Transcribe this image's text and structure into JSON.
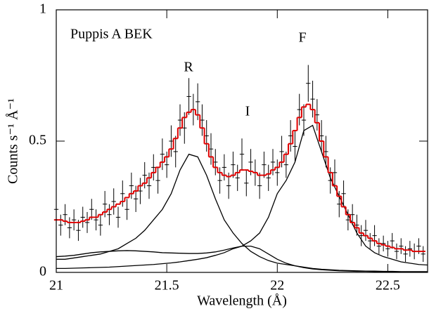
{
  "chart_data": {
    "type": "line",
    "xlabel": "Wavelength (Å)",
    "ylabel": "Counts s⁻¹ Å⁻¹",
    "annotations": [
      "Puppis A BEK",
      "R",
      "I",
      "F"
    ],
    "xlim": [
      21,
      22.68
    ],
    "ylim": [
      0,
      1
    ],
    "xticks": [
      21,
      21.5,
      22,
      22.5
    ],
    "yticks": [
      0,
      0.5,
      1
    ],
    "x": [
      21.0,
      21.02,
      21.04,
      21.06,
      21.08,
      21.1,
      21.12,
      21.14,
      21.16,
      21.18,
      21.2,
      21.22,
      21.24,
      21.26,
      21.28,
      21.3,
      21.32,
      21.34,
      21.36,
      21.38,
      21.4,
      21.42,
      21.44,
      21.46,
      21.48,
      21.5,
      21.52,
      21.54,
      21.56,
      21.58,
      21.6,
      21.62,
      21.64,
      21.66,
      21.68,
      21.7,
      21.72,
      21.74,
      21.76,
      21.78,
      21.8,
      21.82,
      21.84,
      21.86,
      21.88,
      21.9,
      21.92,
      21.94,
      21.96,
      21.98,
      22.0,
      22.02,
      22.04,
      22.06,
      22.08,
      22.1,
      22.12,
      22.14,
      22.16,
      22.18,
      22.2,
      22.22,
      22.24,
      22.26,
      22.28,
      22.3,
      22.32,
      22.34,
      22.36,
      22.38,
      22.4,
      22.42,
      22.44,
      22.46,
      22.48,
      22.5,
      22.52,
      22.54,
      22.56,
      22.58,
      22.6,
      22.62,
      22.64,
      22.66
    ],
    "bin_width": 0.02,
    "series": [
      {
        "style": "errorbar",
        "color": "#000000",
        "values": [
          0.24,
          0.18,
          0.22,
          0.17,
          0.2,
          0.16,
          0.21,
          0.19,
          0.24,
          0.2,
          0.18,
          0.26,
          0.22,
          0.27,
          0.21,
          0.3,
          0.24,
          0.33,
          0.28,
          0.31,
          0.37,
          0.33,
          0.4,
          0.35,
          0.45,
          0.41,
          0.5,
          0.46,
          0.58,
          0.55,
          0.67,
          0.62,
          0.65,
          0.58,
          0.52,
          0.47,
          0.42,
          0.35,
          0.4,
          0.33,
          0.41,
          0.36,
          0.45,
          0.34,
          0.42,
          0.38,
          0.33,
          0.41,
          0.36,
          0.42,
          0.38,
          0.46,
          0.41,
          0.52,
          0.48,
          0.62,
          0.58,
          0.72,
          0.66,
          0.6,
          0.52,
          0.46,
          0.35,
          0.38,
          0.26,
          0.3,
          0.2,
          0.22,
          0.18,
          0.14,
          0.16,
          0.12,
          0.14,
          0.1,
          0.11,
          0.09,
          0.12,
          0.08,
          0.1,
          0.07,
          0.09,
          0.08,
          0.1,
          0.07
        ],
        "errors": [
          0.04,
          0.04,
          0.04,
          0.04,
          0.04,
          0.04,
          0.04,
          0.04,
          0.04,
          0.04,
          0.04,
          0.05,
          0.04,
          0.05,
          0.04,
          0.05,
          0.04,
          0.05,
          0.05,
          0.05,
          0.05,
          0.05,
          0.05,
          0.05,
          0.06,
          0.05,
          0.06,
          0.06,
          0.06,
          0.06,
          0.07,
          0.06,
          0.07,
          0.06,
          0.06,
          0.06,
          0.05,
          0.05,
          0.05,
          0.05,
          0.05,
          0.05,
          0.06,
          0.05,
          0.05,
          0.05,
          0.05,
          0.05,
          0.05,
          0.05,
          0.05,
          0.06,
          0.05,
          0.06,
          0.06,
          0.06,
          0.06,
          0.07,
          0.07,
          0.06,
          0.06,
          0.06,
          0.05,
          0.05,
          0.05,
          0.05,
          0.04,
          0.04,
          0.04,
          0.04,
          0.04,
          0.03,
          0.04,
          0.03,
          0.03,
          0.03,
          0.03,
          0.03,
          0.03,
          0.03,
          0.03,
          0.03,
          0.03,
          0.03
        ]
      },
      {
        "style": "step",
        "color": "#e00000",
        "values": [
          0.2,
          0.2,
          0.195,
          0.19,
          0.19,
          0.19,
          0.195,
          0.2,
          0.21,
          0.21,
          0.22,
          0.23,
          0.24,
          0.25,
          0.26,
          0.27,
          0.285,
          0.3,
          0.31,
          0.33,
          0.34,
          0.36,
          0.38,
          0.4,
          0.42,
          0.44,
          0.47,
          0.51,
          0.55,
          0.59,
          0.61,
          0.62,
          0.6,
          0.55,
          0.49,
          0.44,
          0.4,
          0.38,
          0.37,
          0.365,
          0.37,
          0.38,
          0.39,
          0.39,
          0.385,
          0.38,
          0.37,
          0.37,
          0.375,
          0.39,
          0.4,
          0.42,
          0.45,
          0.49,
          0.54,
          0.59,
          0.63,
          0.64,
          0.62,
          0.57,
          0.5,
          0.44,
          0.38,
          0.33,
          0.29,
          0.25,
          0.22,
          0.19,
          0.17,
          0.15,
          0.14,
          0.13,
          0.12,
          0.11,
          0.105,
          0.1,
          0.095,
          0.09,
          0.09,
          0.085,
          0.085,
          0.08,
          0.08,
          0.08
        ]
      },
      {
        "style": "line",
        "color": "#000000",
        "x": [
          21.0,
          21.04,
          21.08,
          21.12,
          21.16,
          21.2,
          21.24,
          21.28,
          21.32,
          21.36,
          21.4,
          21.44,
          21.48,
          21.52,
          21.56,
          21.6,
          21.64,
          21.68,
          21.72,
          21.76,
          21.8,
          21.84,
          21.88,
          21.92,
          21.96,
          22.0,
          22.04,
          22.08,
          22.12,
          22.16,
          22.2,
          22.24,
          22.28,
          22.32,
          22.36,
          22.4,
          22.44,
          22.48,
          22.52,
          22.56,
          22.6,
          22.64,
          22.68
        ],
        "values": [
          0.05,
          0.05,
          0.055,
          0.06,
          0.065,
          0.07,
          0.08,
          0.09,
          0.11,
          0.13,
          0.16,
          0.2,
          0.24,
          0.3,
          0.39,
          0.45,
          0.44,
          0.37,
          0.28,
          0.2,
          0.15,
          0.11,
          0.08,
          0.06,
          0.045,
          0.035,
          0.03,
          0.025,
          0.02,
          0.015,
          0.012,
          0.01,
          0.008,
          0.007,
          0.006,
          0.005,
          0.005,
          0.004,
          0.004,
          0.003,
          0.003,
          0.003,
          0.003
        ]
      },
      {
        "style": "line",
        "color": "#000000",
        "x": [
          21.0,
          21.04,
          21.08,
          21.12,
          21.16,
          21.2,
          21.24,
          21.28,
          21.32,
          21.36,
          21.4,
          21.44,
          21.48,
          21.52,
          21.56,
          21.6,
          21.64,
          21.68,
          21.72,
          21.76,
          21.8,
          21.84,
          21.88,
          21.92,
          21.96,
          22.0,
          22.04,
          22.08,
          22.12,
          22.16,
          22.2,
          22.24,
          22.28,
          22.32,
          22.36,
          22.4,
          22.44,
          22.48,
          22.52,
          22.56,
          22.6,
          22.64,
          22.68
        ],
        "values": [
          0.06,
          0.062,
          0.065,
          0.07,
          0.075,
          0.078,
          0.08,
          0.082,
          0.083,
          0.082,
          0.08,
          0.078,
          0.075,
          0.074,
          0.073,
          0.072,
          0.072,
          0.074,
          0.078,
          0.085,
          0.093,
          0.1,
          0.1,
          0.09,
          0.07,
          0.05,
          0.035,
          0.025,
          0.018,
          0.013,
          0.01,
          0.008,
          0.006,
          0.005,
          0.004,
          0.004,
          0.003,
          0.003,
          0.002,
          0.002,
          0.002,
          0.002,
          0.002
        ]
      },
      {
        "style": "line",
        "color": "#000000",
        "x": [
          21.0,
          21.04,
          21.08,
          21.12,
          21.16,
          21.2,
          21.24,
          21.28,
          21.32,
          21.36,
          21.4,
          21.44,
          21.48,
          21.52,
          21.56,
          21.6,
          21.64,
          21.68,
          21.72,
          21.76,
          21.8,
          21.84,
          21.88,
          21.92,
          21.96,
          22.0,
          22.04,
          22.08,
          22.12,
          22.16,
          22.2,
          22.24,
          22.28,
          22.32,
          22.36,
          22.4,
          22.44,
          22.48,
          22.52,
          22.56,
          22.6,
          22.64,
          22.68
        ],
        "values": [
          0.015,
          0.015,
          0.016,
          0.017,
          0.018,
          0.019,
          0.02,
          0.022,
          0.024,
          0.026,
          0.028,
          0.03,
          0.033,
          0.036,
          0.04,
          0.045,
          0.05,
          0.056,
          0.065,
          0.075,
          0.09,
          0.1,
          0.12,
          0.15,
          0.21,
          0.3,
          0.35,
          0.42,
          0.54,
          0.56,
          0.46,
          0.36,
          0.29,
          0.22,
          0.15,
          0.1,
          0.075,
          0.06,
          0.05,
          0.04,
          0.035,
          0.03,
          0.028
        ]
      }
    ]
  }
}
